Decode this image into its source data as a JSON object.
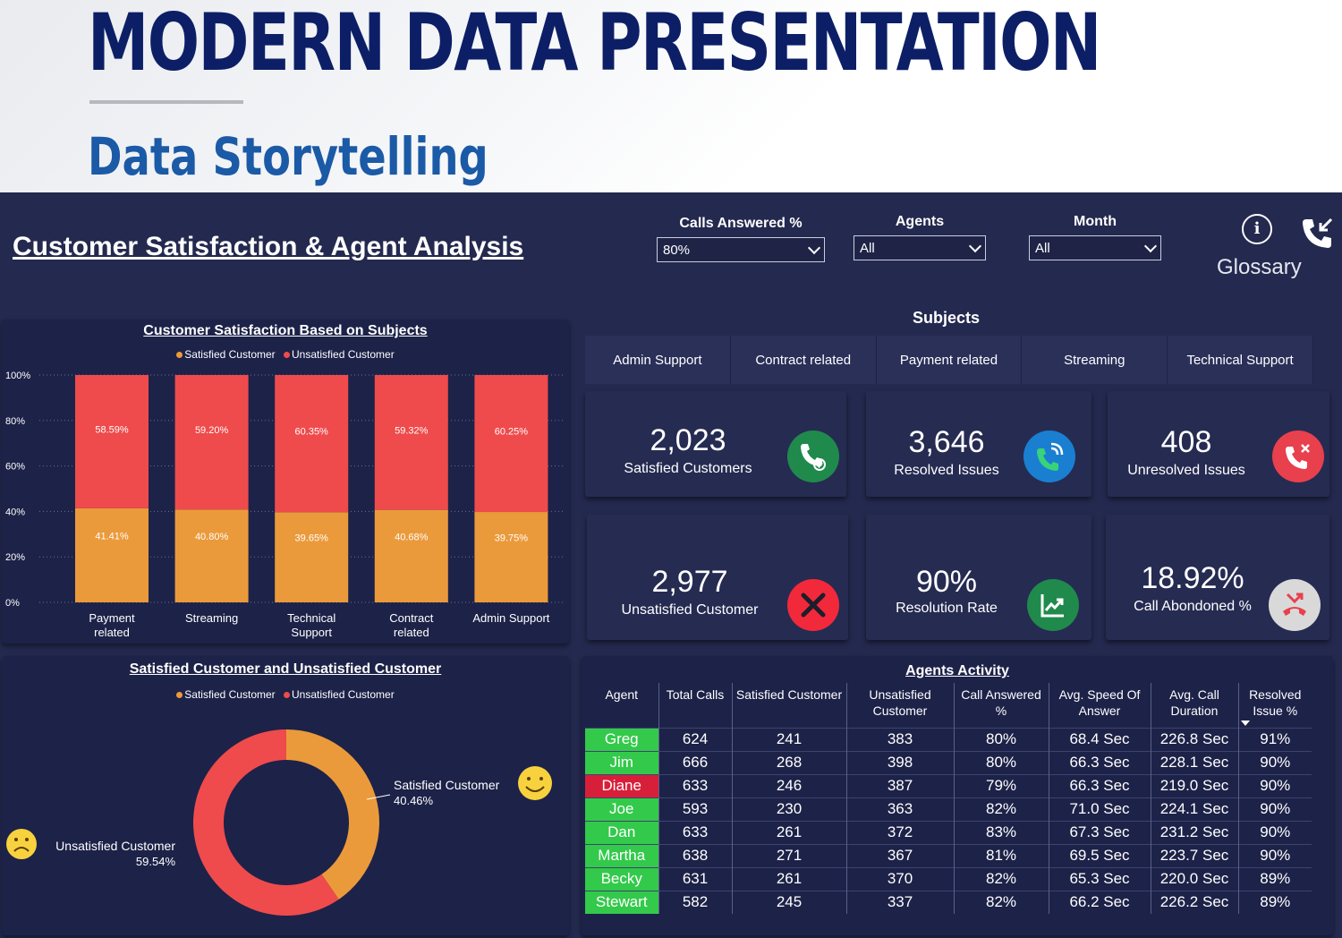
{
  "header": {
    "title": "MODERN DATA PRESENTATION",
    "subtitle": "Data Storytelling"
  },
  "dashboard": {
    "title": "Customer Satisfaction & Agent Analysis",
    "filters": [
      {
        "label": "Calls Answered %",
        "value": "80%"
      },
      {
        "label": "Agents",
        "value": "All"
      },
      {
        "label": "Month",
        "value": "All"
      }
    ],
    "glossary_label": "Glossary",
    "subjects_label": "Subjects",
    "subjects": [
      "Admin Support",
      "Contract related",
      "Payment related",
      "Streaming",
      "Technical Support"
    ],
    "kpis": [
      {
        "value": "2,023",
        "label": "Satisfied Customers",
        "icon": "phone-check-icon",
        "color": "#1f8a4c"
      },
      {
        "value": "3,646",
        "label": "Resolved Issues",
        "icon": "phone-signal-icon",
        "color": "#1a7fd1"
      },
      {
        "value": "408",
        "label": "Unresolved Issues",
        "icon": "phone-x-icon",
        "color": "#e8404d"
      },
      {
        "value": "2,977",
        "label": "Unsatisfied Customer",
        "icon": "x-circle-icon",
        "color": "#f2293b"
      },
      {
        "value": "90%",
        "label": "Resolution Rate",
        "icon": "trend-chart-icon",
        "color": "#1f8a4c"
      },
      {
        "value": "18.92%",
        "label": "Call Abondoned %",
        "icon": "hangup-icon",
        "color": "#d9d9d9"
      }
    ],
    "legend": {
      "satisfied": "Satisfied Customer",
      "unsatisfied": "Unsatisfied Customer"
    },
    "colors": {
      "satisfied": "#eb9a3b",
      "unsatisfied": "#ef4b4c"
    },
    "table": {
      "title": "Agents Activity",
      "headers": [
        "Agent",
        "Total Calls",
        "Satisfied Customer",
        "Unsatisfied Customer",
        "Call Answered %",
        "Avg. Speed Of Answer",
        "Avg. Call Duration",
        "Resolved Issue %"
      ],
      "rows": [
        {
          "agent": "Greg",
          "status": "green",
          "cells": [
            "624",
            "241",
            "383",
            "80%",
            "68.4 Sec",
            "226.8 Sec",
            "91%"
          ]
        },
        {
          "agent": "Jim",
          "status": "green",
          "cells": [
            "666",
            "268",
            "398",
            "80%",
            "66.3 Sec",
            "228.1 Sec",
            "90%"
          ]
        },
        {
          "agent": "Diane",
          "status": "red",
          "cells": [
            "633",
            "246",
            "387",
            "79%",
            "66.3 Sec",
            "219.0 Sec",
            "90%"
          ]
        },
        {
          "agent": "Joe",
          "status": "green",
          "cells": [
            "593",
            "230",
            "363",
            "82%",
            "71.0 Sec",
            "224.1 Sec",
            "90%"
          ]
        },
        {
          "agent": "Dan",
          "status": "green",
          "cells": [
            "633",
            "261",
            "372",
            "83%",
            "67.3 Sec",
            "231.2 Sec",
            "90%"
          ]
        },
        {
          "agent": "Martha",
          "status": "green",
          "cells": [
            "638",
            "271",
            "367",
            "81%",
            "69.5 Sec",
            "223.7 Sec",
            "90%"
          ]
        },
        {
          "agent": "Becky",
          "status": "green",
          "cells": [
            "631",
            "261",
            "370",
            "82%",
            "65.3 Sec",
            "220.0 Sec",
            "89%"
          ]
        },
        {
          "agent": "Stewart",
          "status": "green",
          "cells": [
            "582",
            "245",
            "337",
            "82%",
            "66.2 Sec",
            "226.2 Sec",
            "89%"
          ]
        }
      ]
    }
  },
  "chart_data": [
    {
      "type": "bar",
      "stacked": true,
      "title": "Customer Satisfaction Based on Subjects",
      "categories": [
        "Payment related",
        "Streaming",
        "Technical Support",
        "Contract related",
        "Admin Support"
      ],
      "series": [
        {
          "name": "Satisfied Customer",
          "values": [
            41.41,
            40.8,
            39.65,
            40.68,
            39.75
          ],
          "labels": [
            "41.41%",
            "40.80%",
            "39.65%",
            "40.68%",
            "39.75%"
          ]
        },
        {
          "name": "Unsatisfied Customer",
          "values": [
            58.59,
            59.2,
            60.35,
            59.32,
            60.25
          ],
          "labels": [
            "58.59%",
            "59.20%",
            "60.35%",
            "59.32%",
            "60.25%"
          ]
        }
      ],
      "yticks": [
        "100%",
        "80%",
        "60%",
        "40%",
        "20%",
        "0%"
      ],
      "ylim": [
        0,
        100
      ],
      "legend_position": "top"
    },
    {
      "type": "pie",
      "donut": true,
      "title": "Satisfied Customer and Unsatisfied Customer",
      "slices": [
        {
          "name": "Satisfied Customer",
          "value": 40.46,
          "label": "40.46%"
        },
        {
          "name": "Unsatisfied Customer",
          "value": 59.54,
          "label": "59.54%"
        }
      ],
      "legend_position": "top"
    }
  ]
}
